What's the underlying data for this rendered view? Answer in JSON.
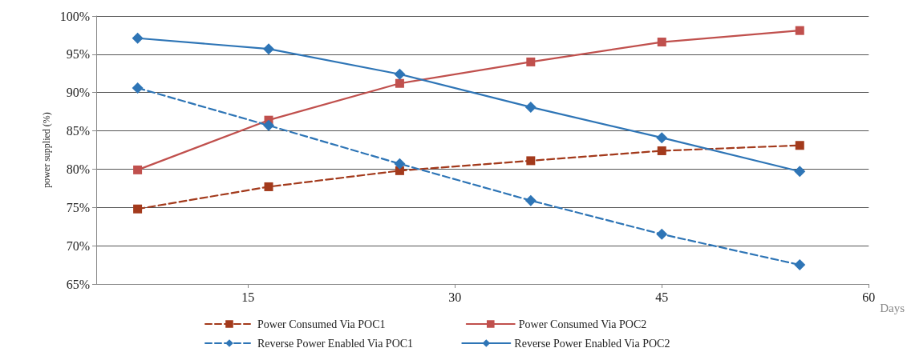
{
  "chart_data": {
    "type": "line",
    "ylabel": "power supplied (%)",
    "xlabel": "Days",
    "x": [
      7,
      16.5,
      26,
      35.5,
      45,
      55
    ],
    "xlim": [
      4,
      60
    ],
    "xticks": [
      15,
      30,
      45,
      60
    ],
    "ylim": [
      65,
      100
    ],
    "yticks": [
      {
        "value": 65,
        "label": "65%"
      },
      {
        "value": 70,
        "label": "70%"
      },
      {
        "value": 75,
        "label": "75%"
      },
      {
        "value": 80,
        "label": "80%"
      },
      {
        "value": 85,
        "label": "85%"
      },
      {
        "value": 90,
        "label": "90%"
      },
      {
        "value": 95,
        "label": "95%"
      },
      {
        "value": 100,
        "label": "100%"
      }
    ],
    "grid": "y",
    "legend": "bottom",
    "series": [
      {
        "name": "Power Consumed Via POC1",
        "color": "#a33a1c",
        "marker": "square",
        "line_style": "dashed",
        "values": [
          74.8,
          77.7,
          79.8,
          81.1,
          82.4,
          83.1
        ]
      },
      {
        "name": "Power Consumed Via POC2",
        "color": "#c0504d",
        "marker": "square",
        "line_style": "solid",
        "values": [
          79.9,
          86.4,
          91.2,
          94.0,
          96.6,
          98.1
        ]
      },
      {
        "name": "Reverse Power Enabled Via POC1",
        "color": "#2e75b6",
        "marker": "diamond",
        "line_style": "dashed",
        "values": [
          90.6,
          85.7,
          80.7,
          75.9,
          71.5,
          67.5
        ]
      },
      {
        "name": "Reverse Power Enabled Via POC2",
        "color": "#2e75b6",
        "marker": "diamond",
        "line_style": "solid",
        "values": [
          97.1,
          95.7,
          92.4,
          88.1,
          84.1,
          79.7
        ]
      }
    ]
  }
}
